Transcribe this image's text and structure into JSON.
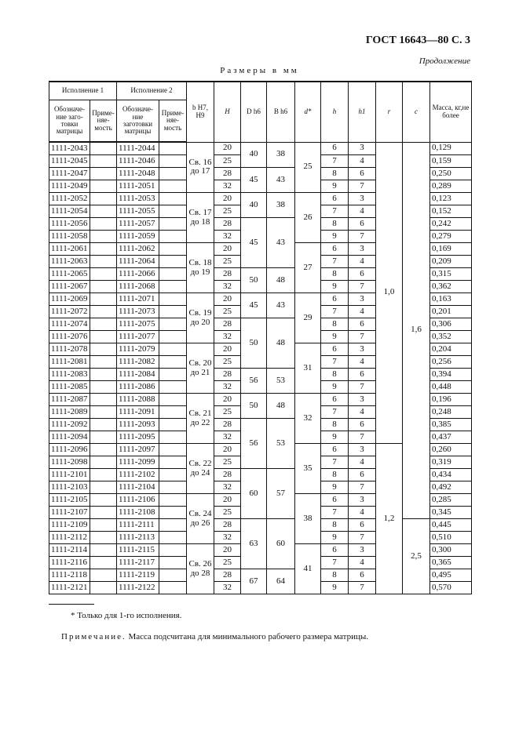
{
  "header": {
    "standard": "ГОСТ 16643—80 С. 3",
    "continuation": "Продолжение",
    "dimensions": "Размеры в мм"
  },
  "table": {
    "group_headers": [
      "Исполнение 1",
      "Исполнение 2"
    ],
    "columns": [
      "Обозначе-ние заго-товки матрицы",
      "Приме-няе-мость",
      "Обозначе-ние заготовки матрицы",
      "Приме-няе-мость",
      "b H7, H9",
      "H",
      "D h6",
      "B h6",
      "d*",
      "h",
      "h1",
      "r",
      "c",
      "Масса, кг,не более"
    ],
    "rows": [
      [
        "1111-2043",
        "1111-2044",
        "20",
        "6",
        "3",
        "0,129"
      ],
      [
        "1111-2045",
        "1111-2046",
        "25",
        "7",
        "4",
        "0,159"
      ],
      [
        "1111-2047",
        "1111-2048",
        "28",
        "8",
        "6",
        "0,250"
      ],
      [
        "1111-2049",
        "1111-2051",
        "32",
        "9",
        "7",
        "0,289"
      ],
      [
        "1111-2052",
        "1111-2053",
        "20",
        "6",
        "3",
        "0,123"
      ],
      [
        "1111-2054",
        "1111-2055",
        "25",
        "7",
        "4",
        "0,152"
      ],
      [
        "1111-2056",
        "1111-2057",
        "28",
        "8",
        "6",
        "0,242"
      ],
      [
        "1111-2058",
        "1111-2059",
        "32",
        "9",
        "7",
        "0,279"
      ],
      [
        "1111-2061",
        "1111-2062",
        "20",
        "6",
        "3",
        "0,169"
      ],
      [
        "1111-2063",
        "1111-2064",
        "25",
        "7",
        "4",
        "0,209"
      ],
      [
        "1111-2065",
        "1111-2066",
        "28",
        "8",
        "6",
        "0,315"
      ],
      [
        "1111-2067",
        "1111-2068",
        "32",
        "9",
        "7",
        "0,362"
      ],
      [
        "1111-2069",
        "1111-2071",
        "20",
        "6",
        "3",
        "0,163"
      ],
      [
        "1111-2072",
        "1111-2073",
        "25",
        "7",
        "4",
        "0,201"
      ],
      [
        "1111-2074",
        "1111-2075",
        "28",
        "8",
        "6",
        "0,306"
      ],
      [
        "1111-2076",
        "1111-2077",
        "32",
        "9",
        "7",
        "0,352"
      ],
      [
        "1111-2078",
        "1111-2079",
        "20",
        "6",
        "3",
        "0,204"
      ],
      [
        "1111-2081",
        "1111-2082",
        "25",
        "7",
        "4",
        "0,256"
      ],
      [
        "1111-2083",
        "1111-2084",
        "28",
        "8",
        "6",
        "0,394"
      ],
      [
        "1111-2085",
        "1111-2086",
        "32",
        "9",
        "7",
        "0,448"
      ],
      [
        "1111-2087",
        "1111-2088",
        "20",
        "6",
        "3",
        "0,196"
      ],
      [
        "1111-2089",
        "1111-2091",
        "25",
        "7",
        "4",
        "0,248"
      ],
      [
        "1111-2092",
        "1111-2093",
        "28",
        "8",
        "6",
        "0,385"
      ],
      [
        "1111-2094",
        "1111-2095",
        "32",
        "9",
        "7",
        "0,437"
      ],
      [
        "1111-2096",
        "1111-2097",
        "20",
        "6",
        "3",
        "0,260"
      ],
      [
        "1111-2098",
        "1111-2099",
        "25",
        "7",
        "4",
        "0,319"
      ],
      [
        "1111-2101",
        "1111-2102",
        "28",
        "8",
        "6",
        "0,434"
      ],
      [
        "1111-2103",
        "1111-2104",
        "32",
        "9",
        "7",
        "0,492"
      ],
      [
        "1111-2105",
        "1111-2106",
        "20",
        "6",
        "3",
        "0,285"
      ],
      [
        "1111-2107",
        "1111-2108",
        "25",
        "7",
        "4",
        "0,345"
      ],
      [
        "1111-2109",
        "1111-2111",
        "28",
        "8",
        "6",
        "0,445"
      ],
      [
        "1111-2112",
        "1111-2113",
        "32",
        "9",
        "7",
        "0,510"
      ],
      [
        "1111-2114",
        "1111-2115",
        "20",
        "6",
        "3",
        "0,300"
      ],
      [
        "1111-2116",
        "1111-2117",
        "25",
        "7",
        "4",
        "0,365"
      ],
      [
        "1111-2118",
        "1111-2119",
        "28",
        "8",
        "6",
        "0,495"
      ],
      [
        "1111-2121",
        "1111-2122",
        "32",
        "9",
        "7",
        "0,570"
      ]
    ],
    "b_groups": [
      {
        "v": "Св. 16 до 17",
        "n": 4
      },
      {
        "v": "Св. 17 до 18",
        "n": 4
      },
      {
        "v": "Св. 18 до 19",
        "n": 4
      },
      {
        "v": "Св. 19 до 20",
        "n": 4
      },
      {
        "v": "Св. 20 до 21",
        "n": 4
      },
      {
        "v": "Св. 21 до 22",
        "n": 4
      },
      {
        "v": "Св. 22 до 24",
        "n": 4
      },
      {
        "v": "Св. 24 до 26",
        "n": 4
      },
      {
        "v": "Св. 26 до 28",
        "n": 4
      }
    ],
    "db_groups": [
      {
        "D": "40",
        "B": "38",
        "n": 2
      },
      {
        "D": "45",
        "B": "43",
        "n": 2
      },
      {
        "D": "40",
        "B": "38",
        "n": 2
      },
      {
        "D": "45",
        "B": "43",
        "n": 4
      },
      {
        "D": "50",
        "B": "48",
        "n": 2
      },
      {
        "D": "45",
        "B": "43",
        "n": 2
      },
      {
        "D": "50",
        "B": "48",
        "n": 4
      },
      {
        "D": "56",
        "B": "53",
        "n": 2
      },
      {
        "D": "50",
        "B": "48",
        "n": 2
      },
      {
        "D": "56",
        "B": "53",
        "n": 4
      },
      {
        "D": "60",
        "B": "57",
        "n": 4
      },
      {
        "D": "63",
        "B": "60",
        "n": 4
      },
      {
        "D": "67",
        "B": "64",
        "n": 2
      }
    ],
    "d_groups": [
      {
        "v": "25",
        "n": 4
      },
      {
        "v": "26",
        "n": 4
      },
      {
        "v": "27",
        "n": 4
      },
      {
        "v": "29",
        "n": 4
      },
      {
        "v": "31",
        "n": 4
      },
      {
        "v": "32",
        "n": 4
      },
      {
        "v": "35",
        "n": 4
      },
      {
        "v": "38",
        "n": 4
      },
      {
        "v": "41",
        "n": 4
      }
    ],
    "r_groups": [
      {
        "v": "1,0",
        "n": 24
      },
      {
        "v": "1,2",
        "n": 12
      }
    ],
    "c_groups": [
      {
        "v": "1,6",
        "n": 30
      },
      {
        "v": "2,5",
        "n": 6
      }
    ]
  },
  "footnote": "* Только для 1-го исполнения.",
  "note": {
    "label": "Примечание.",
    "text": " Масса подсчитана для минимального рабочего размера матрицы."
  }
}
